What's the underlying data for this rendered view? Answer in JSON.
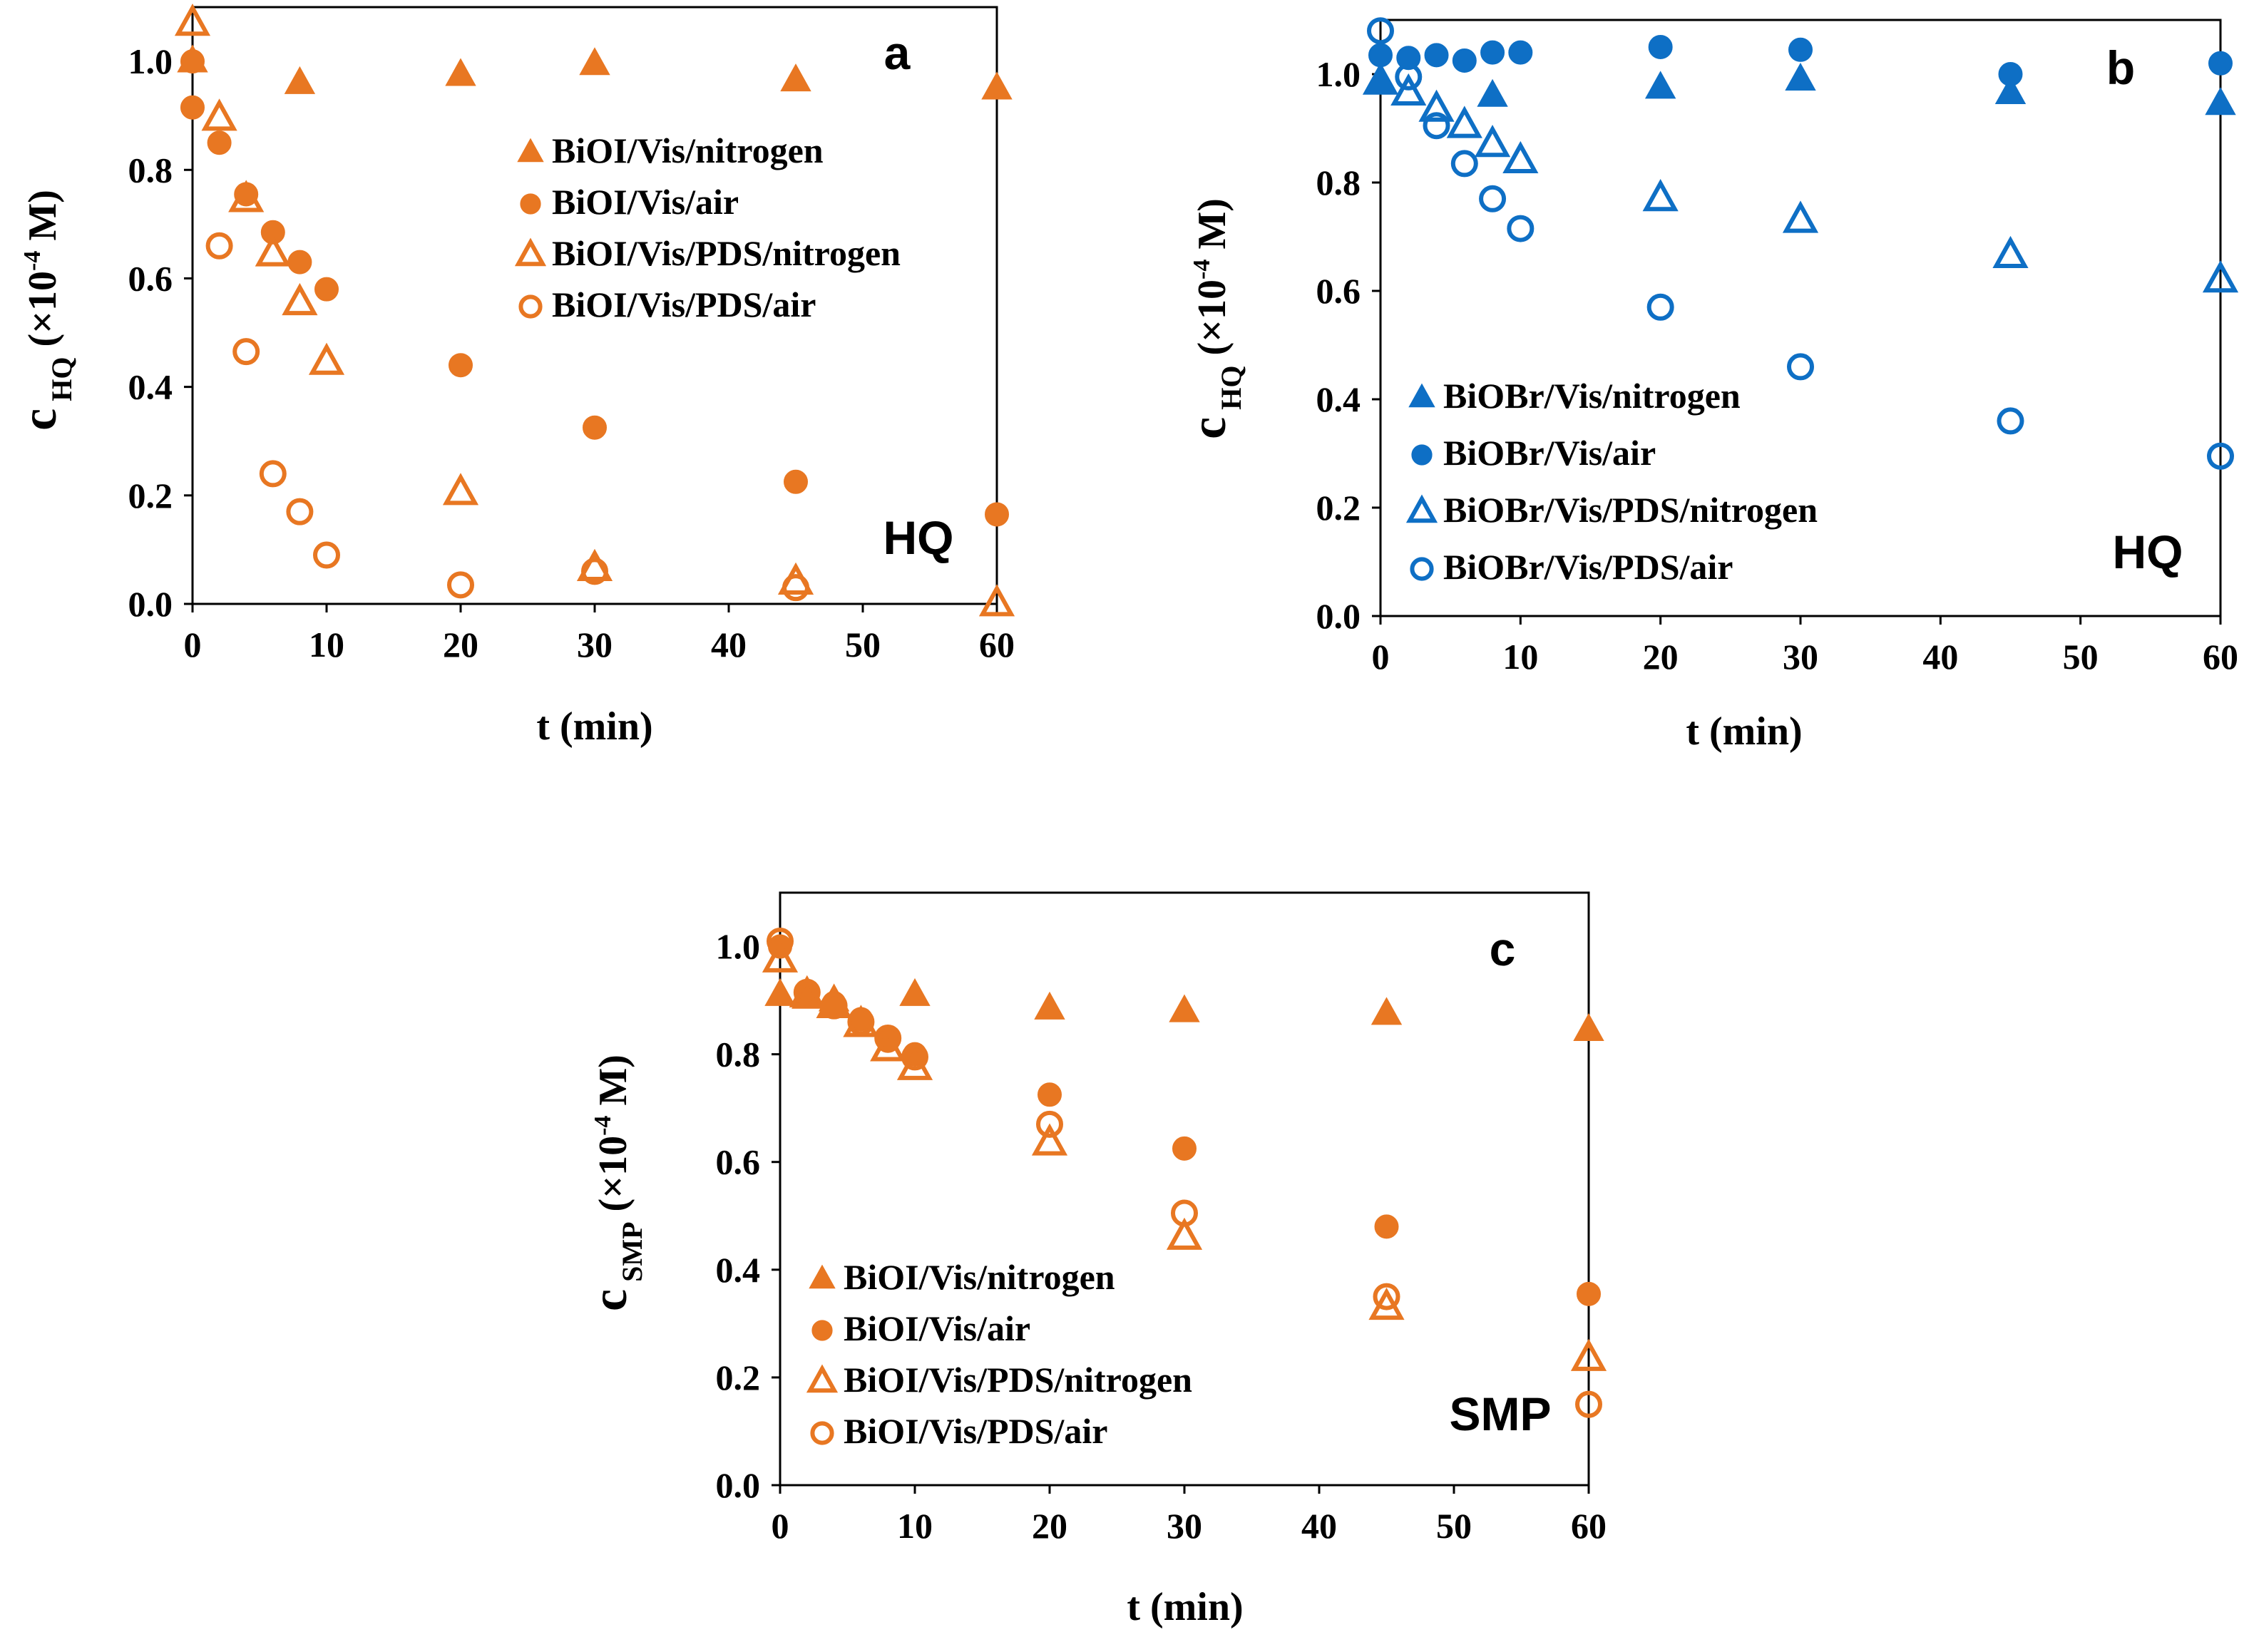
{
  "figure": {
    "colors": {
      "orange": "#E87722",
      "blue": "#0E6FC5"
    }
  },
  "chart_data": [
    {
      "type": "scatter",
      "panel": "a",
      "compound": "HQ",
      "color": "#E87722",
      "xlabel": "t (min)",
      "ylabel": {
        "main": "c",
        "sub": "HQ",
        "units": "(×10",
        "exp": "-4",
        "tail": " M)"
      },
      "xlim": [
        0,
        60
      ],
      "ylim": [
        0,
        1.1
      ],
      "xticks": [
        0,
        10,
        20,
        30,
        40,
        50,
        60
      ],
      "yticks": [
        0.0,
        0.2,
        0.4,
        0.6,
        0.8,
        1.0
      ],
      "ytick_labels": [
        "0.0",
        "0.2",
        "0.4",
        "0.6",
        "0.8",
        "1.0"
      ],
      "legend_position": "middle",
      "series": [
        {
          "name": "BiOI/Vis/nitrogen",
          "marker": "triangle-filled",
          "x": [
            0,
            8,
            20,
            30,
            45,
            60
          ],
          "y": [
            1.0,
            0.96,
            0.975,
            0.995,
            0.965,
            0.95
          ]
        },
        {
          "name": "BiOI/Vis/air",
          "marker": "circle-filled",
          "x": [
            0,
            0,
            2,
            4,
            6,
            8,
            10,
            20,
            30,
            45,
            60
          ],
          "y": [
            1.0,
            0.915,
            0.85,
            0.755,
            0.685,
            0.63,
            0.58,
            0.44,
            0.325,
            0.225,
            0.165
          ]
        },
        {
          "name": "BiOI/Vis/PDS/nitrogen",
          "marker": "triangle-open",
          "x": [
            0,
            2,
            4,
            6,
            8,
            10,
            20,
            30,
            45,
            60
          ],
          "y": [
            1.07,
            0.895,
            0.745,
            0.645,
            0.555,
            0.445,
            0.205,
            0.065,
            0.04,
            0.0
          ]
        },
        {
          "name": "BiOI/Vis/PDS/air",
          "marker": "circle-open",
          "x": [
            2,
            4,
            6,
            8,
            10,
            20,
            30,
            45
          ],
          "y": [
            0.66,
            0.465,
            0.24,
            0.17,
            0.09,
            0.035,
            0.06,
            0.03
          ]
        }
      ]
    },
    {
      "type": "scatter",
      "panel": "b",
      "compound": "HQ",
      "color": "#0E6FC5",
      "xlabel": "t (min)",
      "ylabel": {
        "main": "c",
        "sub": "HQ",
        "units": "(×10",
        "exp": "-4",
        "tail": " M)"
      },
      "xlim": [
        0,
        60
      ],
      "ylim": [
        0,
        1.1
      ],
      "xticks": [
        0,
        10,
        20,
        30,
        40,
        50,
        60
      ],
      "yticks": [
        0.0,
        0.2,
        0.4,
        0.6,
        0.8,
        1.0
      ],
      "ytick_labels": [
        "0.0",
        "0.2",
        "0.4",
        "0.6",
        "0.8",
        "1.0"
      ],
      "legend_position": "bottom-left",
      "series": [
        {
          "name": "BiOBr/Vis/nitrogen",
          "marker": "triangle-filled",
          "x": [
            0,
            8,
            20,
            30,
            45,
            60
          ],
          "y": [
            0.99,
            0.96,
            0.975,
            0.99,
            0.965,
            0.945
          ]
        },
        {
          "name": "BiOBr/Vis/air",
          "marker": "circle-filled",
          "x": [
            0,
            2,
            4,
            6,
            8,
            10,
            20,
            30,
            45,
            60
          ],
          "y": [
            1.035,
            1.03,
            1.035,
            1.025,
            1.04,
            1.04,
            1.05,
            1.045,
            1.0,
            1.02
          ]
        },
        {
          "name": "BiOBr/Vis/PDS/nitrogen",
          "marker": "triangle-open",
          "x": [
            0,
            2,
            4,
            6,
            8,
            10,
            20,
            30,
            45,
            60
          ],
          "y": [
            0.985,
            0.965,
            0.935,
            0.905,
            0.87,
            0.84,
            0.77,
            0.73,
            0.665,
            0.62
          ]
        },
        {
          "name": "BiOBr/Vis/PDS/air",
          "marker": "circle-open",
          "x": [
            0,
            2,
            4,
            6,
            8,
            10,
            20,
            30,
            45,
            60
          ],
          "y": [
            1.08,
            0.995,
            0.905,
            0.835,
            0.77,
            0.715,
            0.57,
            0.46,
            0.36,
            0.295
          ]
        }
      ]
    },
    {
      "type": "scatter",
      "panel": "c",
      "compound": "SMP",
      "color": "#E87722",
      "xlabel": "t (min)",
      "ylabel": {
        "main": "c",
        "sub": "SMP",
        "units": "(×10",
        "exp": "-4",
        "tail": " M)"
      },
      "xlim": [
        0,
        60
      ],
      "ylim": [
        0,
        1.1
      ],
      "xticks": [
        0,
        10,
        20,
        30,
        40,
        50,
        60
      ],
      "yticks": [
        0.0,
        0.2,
        0.4,
        0.6,
        0.8,
        1.0
      ],
      "ytick_labels": [
        "0.0",
        "0.2",
        "0.4",
        "0.6",
        "0.8",
        "1.0"
      ],
      "legend_position": "bottom-left",
      "series": [
        {
          "name": "BiOI/Vis/nitrogen",
          "marker": "triangle-filled",
          "x": [
            0,
            2,
            4,
            10,
            20,
            30,
            45,
            60
          ],
          "y": [
            0.91,
            0.905,
            0.9,
            0.91,
            0.885,
            0.88,
            0.875,
            0.845
          ]
        },
        {
          "name": "BiOI/Vis/air",
          "marker": "circle-filled",
          "x": [
            0,
            2,
            4,
            6,
            8,
            10,
            20,
            30,
            45,
            60
          ],
          "y": [
            1.0,
            0.915,
            0.895,
            0.865,
            0.825,
            0.8,
            0.725,
            0.625,
            0.48,
            0.355
          ]
        },
        {
          "name": "BiOI/Vis/PDS/nitrogen",
          "marker": "triangle-open",
          "x": [
            0,
            2,
            4,
            6,
            8,
            10,
            20,
            30,
            45,
            60
          ],
          "y": [
            0.975,
            0.91,
            0.89,
            0.855,
            0.81,
            0.775,
            0.635,
            0.46,
            0.33,
            0.235
          ]
        },
        {
          "name": "BiOI/Vis/PDS/air",
          "marker": "circle-open",
          "x": [
            0,
            2,
            4,
            6,
            8,
            10,
            20,
            30,
            45,
            60
          ],
          "y": [
            1.01,
            0.915,
            0.89,
            0.86,
            0.83,
            0.795,
            0.67,
            0.505,
            0.35,
            0.15
          ]
        }
      ]
    }
  ]
}
